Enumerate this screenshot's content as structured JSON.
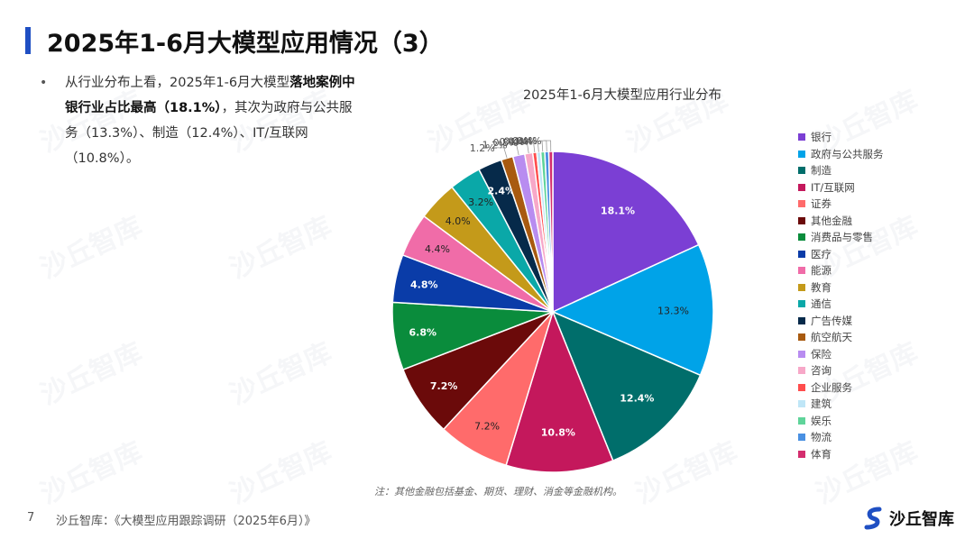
{
  "page": {
    "title": "2025年1-6月大模型应用情况（3）",
    "summary_part1": "从行业分布上看，2025年1-6月大模型",
    "summary_bold": "落地案例中银行业占比最高（18.1%）",
    "summary_part2": "，其次为政府与公共服务（13.3%）、制造（12.4%）、IT/互联网（10.8%）。",
    "note": "注：其他金融包括基金、期货、理财、消金等金融机构。",
    "page_number": "7",
    "source": "沙丘智库：《大模型应用跟踪调研（2025年6月）》",
    "logo_text": "沙丘智库",
    "watermark_text": "沙丘智库"
  },
  "colors": {
    "accent": "#1f4fc3"
  },
  "chart_data": {
    "type": "pie",
    "title": "2025年1-6月大模型应用行业分布",
    "legend_position": "right",
    "unit": "%",
    "slices": [
      {
        "name": "银行",
        "value": 18.1,
        "label": "18.1%",
        "color": "#7b3fd4"
      },
      {
        "name": "政府与公共服务",
        "value": 13.3,
        "label": "13.3%",
        "color": "#00a3e8"
      },
      {
        "name": "制造",
        "value": 12.4,
        "label": "12.4%",
        "color": "#006e6b"
      },
      {
        "name": "IT/互联网",
        "value": 10.8,
        "label": "10.8%",
        "color": "#c4185c"
      },
      {
        "name": "证券",
        "value": 7.2,
        "label": "7.2%",
        "color": "#ff6b6b"
      },
      {
        "name": "其他金融",
        "value": 7.2,
        "label": "7.2%",
        "color": "#6b0a0a"
      },
      {
        "name": "消费品与零售",
        "value": 6.8,
        "label": "6.8%",
        "color": "#0a8c3c"
      },
      {
        "name": "医疗",
        "value": 4.8,
        "label": "4.8%",
        "color": "#0a3ca8"
      },
      {
        "name": "能源",
        "value": 4.4,
        "label": "4.4%",
        "color": "#f06ca8"
      },
      {
        "name": "教育",
        "value": 4.0,
        "label": "4.0%",
        "color": "#c49a1a"
      },
      {
        "name": "通信",
        "value": 3.2,
        "label": "3.2%",
        "color": "#0aa8a8"
      },
      {
        "name": "广告传媒",
        "value": 2.4,
        "label": "2.4%",
        "color": "#062a4a"
      },
      {
        "name": "航空航天",
        "value": 1.2,
        "label": "1.2%",
        "color": "#a85a10"
      },
      {
        "name": "保险",
        "value": 1.2,
        "label": "1.2%",
        "color": "#b88cf0"
      },
      {
        "name": "咨询",
        "value": 0.8,
        "label": "0.8%",
        "color": "#f7a8c8"
      },
      {
        "name": "企业服务",
        "value": 0.4,
        "label": "0.4%",
        "color": "#ff4d4d"
      },
      {
        "name": "建筑",
        "value": 0.4,
        "label": "0.4%",
        "color": "#bfe6f7"
      },
      {
        "name": "娱乐",
        "value": 0.4,
        "label": "0.4%",
        "color": "#5fd49a"
      },
      {
        "name": "物流",
        "value": 0.4,
        "label": "0.4%",
        "color": "#4a90e2"
      },
      {
        "name": "体育",
        "value": 0.4,
        "label": "0.4%",
        "color": "#d42e6e"
      }
    ]
  }
}
